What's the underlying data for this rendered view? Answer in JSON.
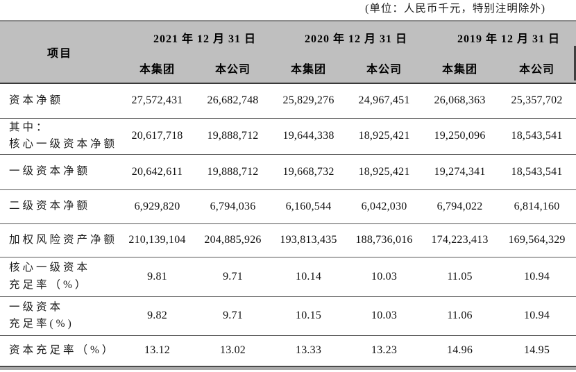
{
  "unit_note": "(单位：人民币千元，特别注明除外)",
  "colors": {
    "header_bg": "#bfbfbf",
    "rule_dark": "#4a4a4a",
    "bottom_band": "#a9a9a9"
  },
  "table": {
    "item_header": "项目",
    "dates": [
      "2021 年 12 月 31 日",
      "2020 年 12 月 31 日",
      "2019 年 12 月 31 日"
    ],
    "sub_headers": {
      "group": "本集团",
      "company": "本公司"
    },
    "rows": [
      {
        "label": "资本净额",
        "values": [
          "27,572,431",
          "26,682,748",
          "25,829,276",
          "24,967,451",
          "26,068,363",
          "25,357,702"
        ]
      },
      {
        "label": "其中：\n核心一级资本净额",
        "values": [
          "20,617,718",
          "19,888,712",
          "19,644,338",
          "18,925,421",
          "19,250,096",
          "18,543,541"
        ]
      },
      {
        "label": "一级资本净额",
        "values": [
          "20,642,611",
          "19,888,712",
          "19,668,732",
          "18,925,421",
          "19,274,341",
          "18,543,541"
        ]
      },
      {
        "label": "二级资本净额",
        "values": [
          "6,929,820",
          "6,794,036",
          "6,160,544",
          "6,042,030",
          "6,794,022",
          "6,814,160"
        ]
      },
      {
        "label": "加权风险资产净额",
        "values": [
          "210,139,104",
          "204,885,926",
          "193,813,435",
          "188,736,016",
          "174,223,413",
          "169,564,329"
        ]
      },
      {
        "label": "核心一级资本\n充足率（%）",
        "values": [
          "9.81",
          "9.71",
          "10.14",
          "10.03",
          "11.05",
          "10.94"
        ]
      },
      {
        "label": "一级资本\n充足率(%)",
        "values": [
          "9.82",
          "9.71",
          "10.15",
          "10.03",
          "11.06",
          "10.94"
        ]
      },
      {
        "label": "资本充足率（%）",
        "values": [
          "13.12",
          "13.02",
          "13.33",
          "13.23",
          "14.96",
          "14.95"
        ]
      }
    ]
  }
}
